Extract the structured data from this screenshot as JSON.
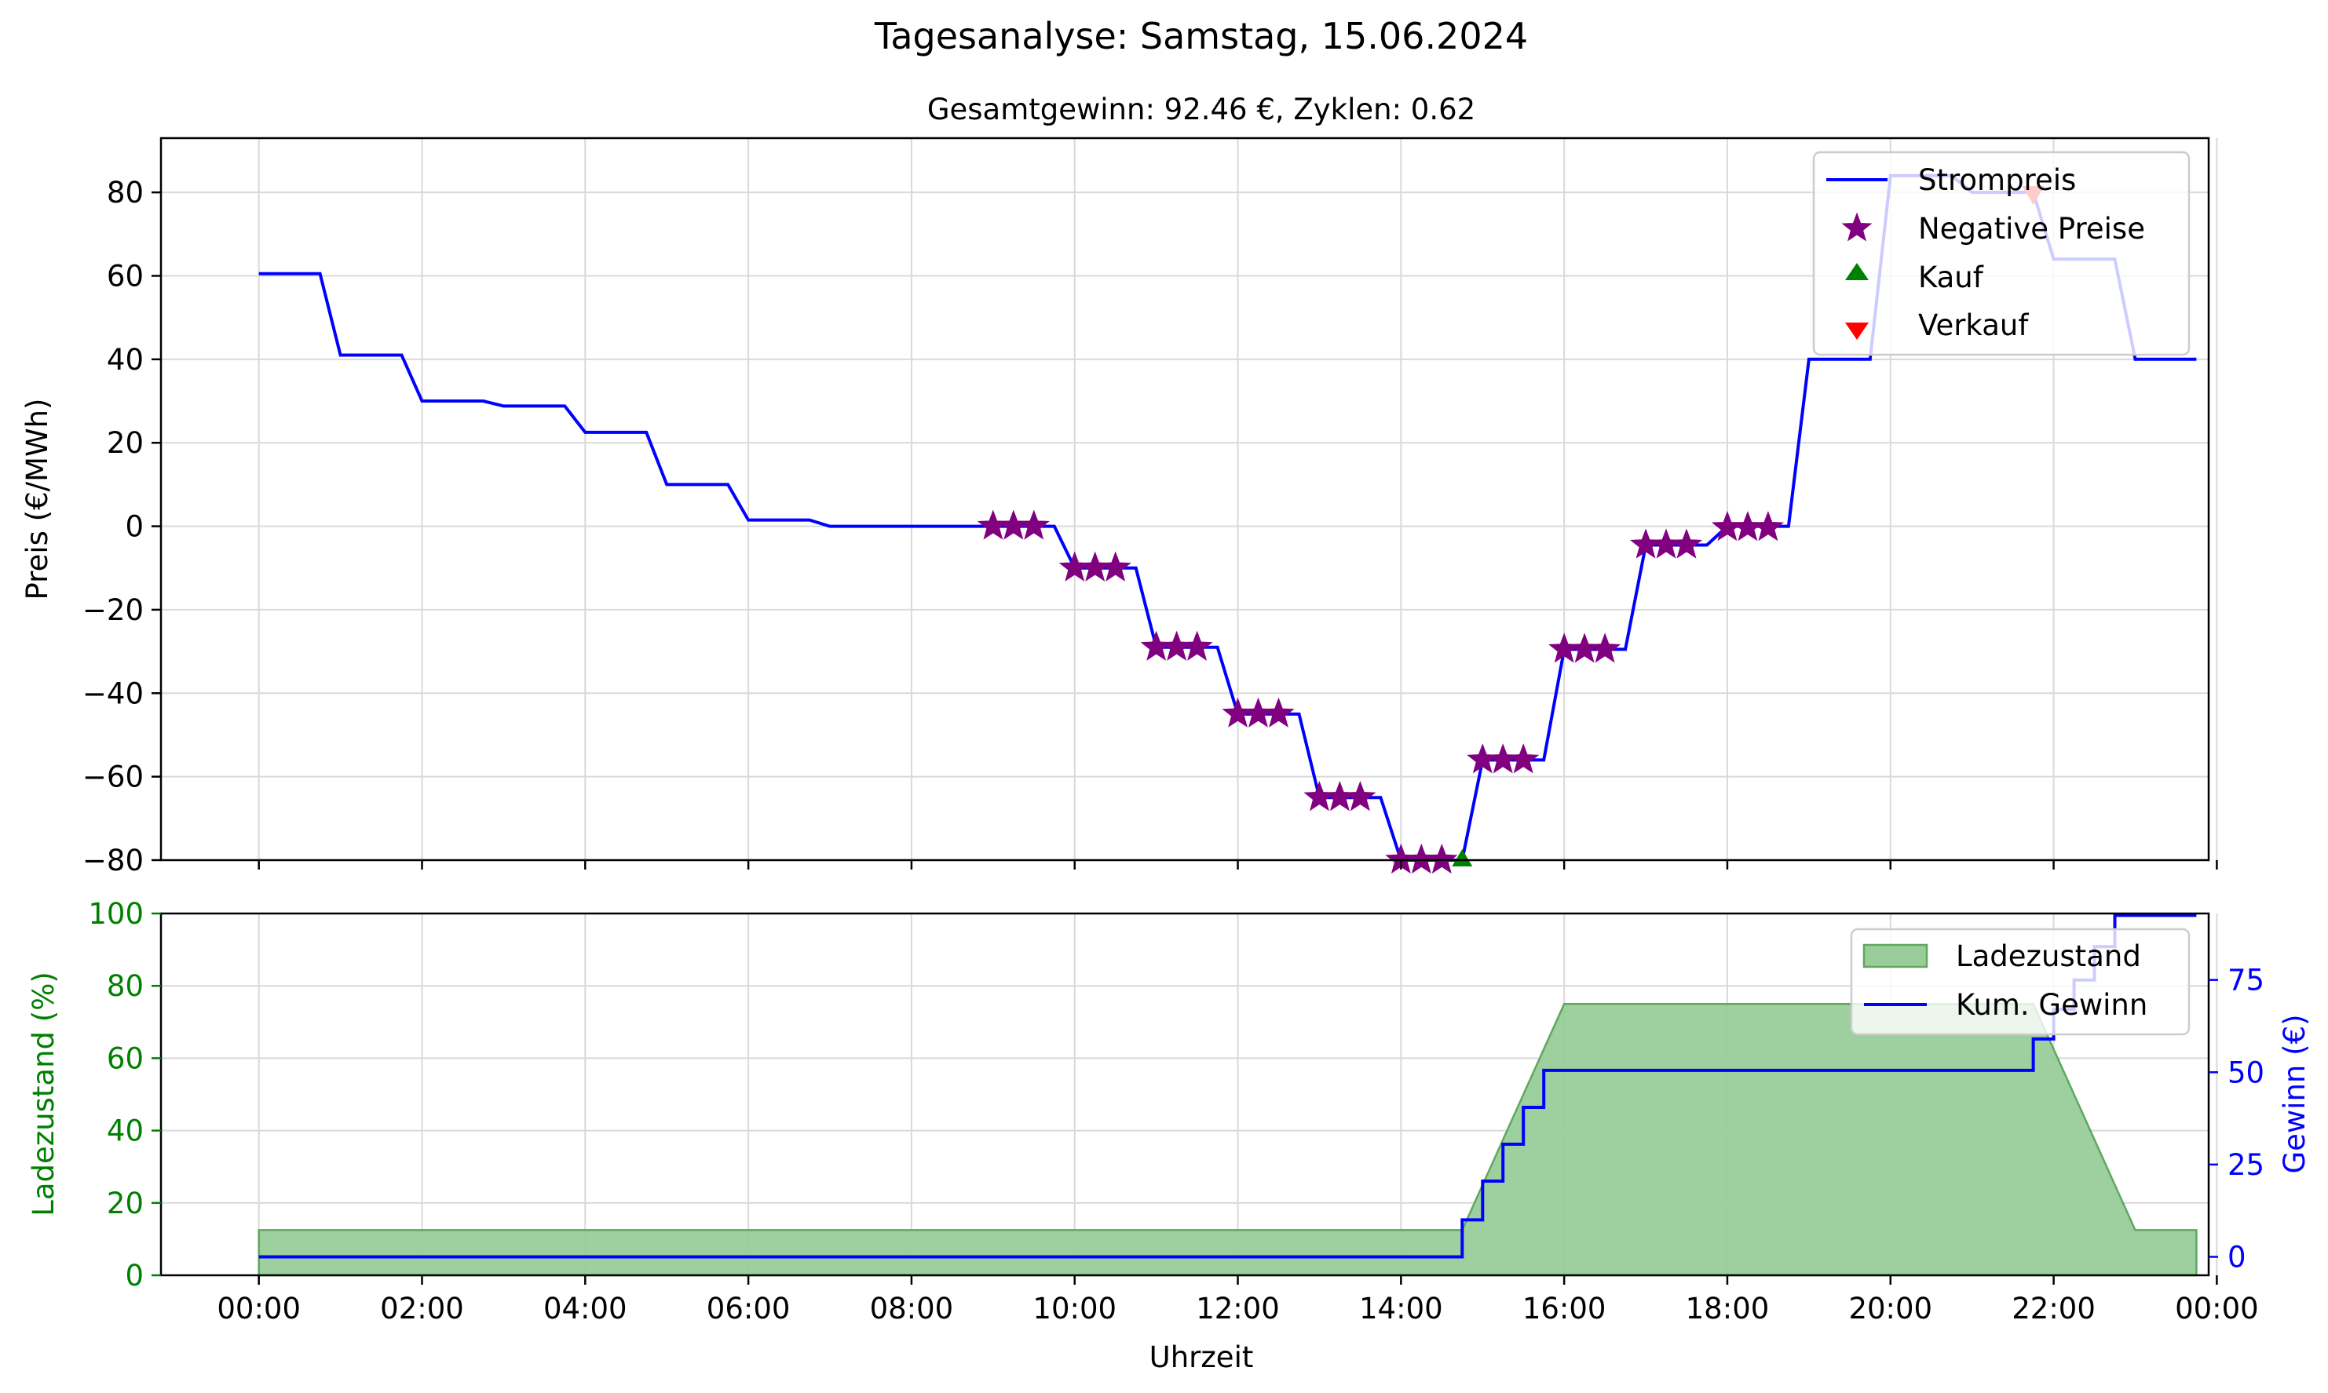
{
  "title": "Tagesanalyse: Samstag, 15.06.2024",
  "subtitle": "Gesamtgewinn: 92.46 €, Zyklen: 0.62",
  "colors": {
    "price": "#0000ff",
    "negative": "#800080",
    "buy": "#008000",
    "sell": "#ff0000",
    "soc_fill": "#99cc99",
    "soc_edge": "#5fa85f",
    "profit": "#0000ff",
    "soc_axis": "#008000",
    "profit_axis": "#0000ff",
    "grid": "#d9d9d9",
    "axis": "#000000"
  },
  "chart_data": [
    {
      "type": "line",
      "ylabel": "Preis (€/MWh)",
      "ylim": [
        -80,
        93
      ],
      "xlim": [
        -1.2,
        23.9
      ],
      "yticks": [
        -80,
        -60,
        -40,
        -20,
        0,
        20,
        40,
        60,
        80
      ],
      "yticklabels": [
        "−80",
        "−60",
        "−40",
        "−20",
        "0",
        "20",
        "40",
        "60",
        "80"
      ],
      "grid": true,
      "legend_position": "top-right",
      "legend": [
        "Strompreis",
        "Negative Preise",
        "Kauf",
        "Verkauf"
      ],
      "series": [
        {
          "name": "Strompreis",
          "x": [
            0,
            0.75,
            1,
            1.75,
            2,
            2.75,
            3,
            3.75,
            4,
            4.75,
            5,
            5.75,
            6,
            6.75,
            7,
            7.75,
            8,
            8.75,
            9,
            9.75,
            10,
            10.75,
            11,
            11.75,
            12,
            12.75,
            13,
            13.75,
            14,
            14.75,
            15,
            15.75,
            16,
            16.75,
            17,
            17.75,
            18,
            18.75,
            19,
            19.75,
            20,
            20.75,
            21,
            21.75,
            22,
            22.75,
            23,
            23.75
          ],
          "y": [
            60.5,
            60.5,
            41,
            41,
            30,
            30,
            28.8,
            28.8,
            22.5,
            22.5,
            10,
            10,
            1.5,
            1.5,
            0,
            0,
            0,
            0,
            0,
            0,
            -10,
            -10,
            -29,
            -29,
            -45,
            -45,
            -65,
            -65,
            -80,
            -80,
            -56,
            -56,
            -29.5,
            -29.5,
            -4.5,
            -4.5,
            0,
            0,
            40,
            40,
            84,
            84,
            80,
            80,
            64,
            64,
            40,
            40
          ]
        },
        {
          "name": "Negative Preise",
          "type": "scatter",
          "x": [
            9,
            9.25,
            9.5,
            10,
            10.25,
            10.5,
            11,
            11.25,
            11.5,
            12,
            12.25,
            12.5,
            13,
            13.25,
            13.5,
            14,
            14.25,
            14.5,
            15,
            15.25,
            15.5,
            16,
            16.25,
            16.5,
            17,
            17.25,
            17.5,
            18,
            18.25,
            18.5
          ],
          "y": [
            0,
            0,
            0,
            -10,
            -10,
            -10,
            -29,
            -29,
            -29,
            -45,
            -45,
            -45,
            -65,
            -65,
            -65,
            -80,
            -80,
            -80,
            -56,
            -56,
            -56,
            -29.5,
            -29.5,
            -29.5,
            -4.5,
            -4.5,
            -4.5,
            -0.3,
            -0.3,
            -0.3
          ]
        },
        {
          "name": "Kauf",
          "type": "scatter",
          "x": [
            14.75
          ],
          "y": [
            -80
          ]
        },
        {
          "name": "Verkauf",
          "type": "scatter",
          "x": [
            21.75
          ],
          "y": [
            80
          ]
        }
      ]
    },
    {
      "type": "area",
      "xlabel": "Uhrzeit",
      "ylabel": "Ladezustand (%)",
      "y2label": "Gewinn (€)",
      "ylim": [
        0,
        100
      ],
      "y2lim": [
        -5,
        93
      ],
      "xlim": [
        -1.2,
        23.9
      ],
      "yticks": [
        0,
        20,
        40,
        60,
        80,
        100
      ],
      "y2ticks": [
        0,
        25,
        50,
        75
      ],
      "xticks": [
        0,
        2,
        4,
        6,
        8,
        10,
        12,
        14,
        16,
        18,
        20,
        22,
        24
      ],
      "xticklabels": [
        "00:00",
        "02:00",
        "04:00",
        "06:00",
        "08:00",
        "10:00",
        "12:00",
        "14:00",
        "16:00",
        "18:00",
        "20:00",
        "22:00",
        "00:00"
      ],
      "grid": true,
      "legend_position": "top-right",
      "legend": [
        "Ladezustand",
        "Kum. Gewinn"
      ],
      "series": [
        {
          "name": "Ladezustand",
          "axis": "left",
          "x": [
            0,
            14.75,
            16,
            21.75,
            23,
            23.75
          ],
          "y": [
            12.5,
            12.5,
            75,
            75,
            12.5,
            12.5
          ]
        },
        {
          "name": "Kum. Gewinn",
          "axis": "right",
          "step": true,
          "x": [
            0,
            14.75,
            15,
            15.25,
            15.5,
            15.75,
            21.75,
            22,
            22.25,
            22.5,
            22.75,
            23.75
          ],
          "y": [
            0,
            10,
            20.5,
            30.5,
            40.5,
            50.5,
            59,
            67,
            75,
            84,
            92.5,
            92.5
          ]
        }
      ]
    }
  ]
}
